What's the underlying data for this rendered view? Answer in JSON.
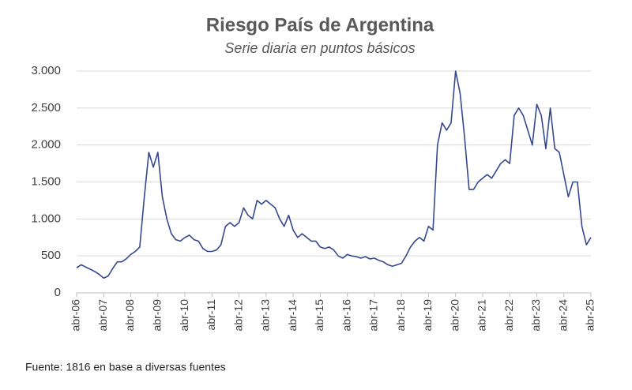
{
  "chart_data": {
    "type": "line",
    "title": "Riesgo País de Argentina",
    "subtitle": "Serie diaria en puntos básicos",
    "source": "Fuente: 1816  en base a diversas fuentes",
    "categories": [
      "abr-06",
      null,
      null,
      null,
      null,
      null,
      "abr-07",
      null,
      null,
      null,
      null,
      null,
      "abr-08",
      null,
      null,
      null,
      null,
      null,
      "abr-09",
      null,
      null,
      null,
      null,
      null,
      "abr-10",
      null,
      null,
      null,
      null,
      null,
      "abr-11",
      null,
      null,
      null,
      null,
      null,
      "abr-12",
      null,
      null,
      null,
      null,
      null,
      "abr-13",
      null,
      null,
      null,
      null,
      null,
      "abr-14",
      null,
      null,
      null,
      null,
      null,
      "abr-15",
      null,
      null,
      null,
      null,
      null,
      "abr-16",
      null,
      null,
      null,
      null,
      null,
      "abr-17",
      null,
      null,
      null,
      null,
      null,
      "abr-18",
      null,
      null,
      null,
      null,
      null,
      "abr-19",
      null,
      null,
      null,
      null,
      null,
      "abr-20",
      null,
      null,
      null,
      null,
      null,
      "abr-21",
      null,
      null,
      null,
      null,
      null,
      "abr-22",
      null,
      null,
      null,
      null,
      null,
      "abr-23",
      null,
      null,
      null,
      null,
      null,
      "abr-24",
      null,
      null,
      null,
      null,
      null,
      "abr-25"
    ],
    "values": [
      340,
      380,
      350,
      320,
      290,
      250,
      200,
      230,
      330,
      420,
      420,
      460,
      520,
      560,
      620,
      1300,
      1900,
      1700,
      1900,
      1300,
      1000,
      800,
      720,
      700,
      750,
      780,
      720,
      700,
      600,
      560,
      560,
      580,
      650,
      900,
      950,
      900,
      950,
      1150,
      1050,
      1000,
      1250,
      1200,
      1250,
      1200,
      1150,
      1000,
      900,
      1050,
      850,
      750,
      800,
      750,
      700,
      700,
      620,
      600,
      620,
      580,
      500,
      470,
      520,
      500,
      490,
      470,
      490,
      460,
      470,
      440,
      420,
      380,
      360,
      380,
      400,
      500,
      620,
      700,
      750,
      700,
      900,
      850,
      2000,
      2300,
      2200,
      2300,
      3000,
      2700,
      2100,
      1400,
      1400,
      1500,
      1550,
      1600,
      1550,
      1650,
      1750,
      1800,
      1750,
      2400,
      2500,
      2400,
      2200,
      2000,
      2550,
      2400,
      1950,
      2500,
      1950,
      1900,
      1600,
      1300,
      1500,
      1500,
      900,
      650,
      750
    ],
    "color": "#34488f",
    "ylim": [
      0,
      3000
    ],
    "yticks": [
      0,
      500,
      {
        "value": 1000,
        "label": "1.000"
      },
      {
        "value": 1500,
        "label": "1.500"
      },
      {
        "value": 2000,
        "label": "2.000"
      },
      {
        "value": 2500,
        "label": "2.500"
      },
      {
        "value": 3000,
        "label": "3.000"
      }
    ],
    "grid": true
  }
}
